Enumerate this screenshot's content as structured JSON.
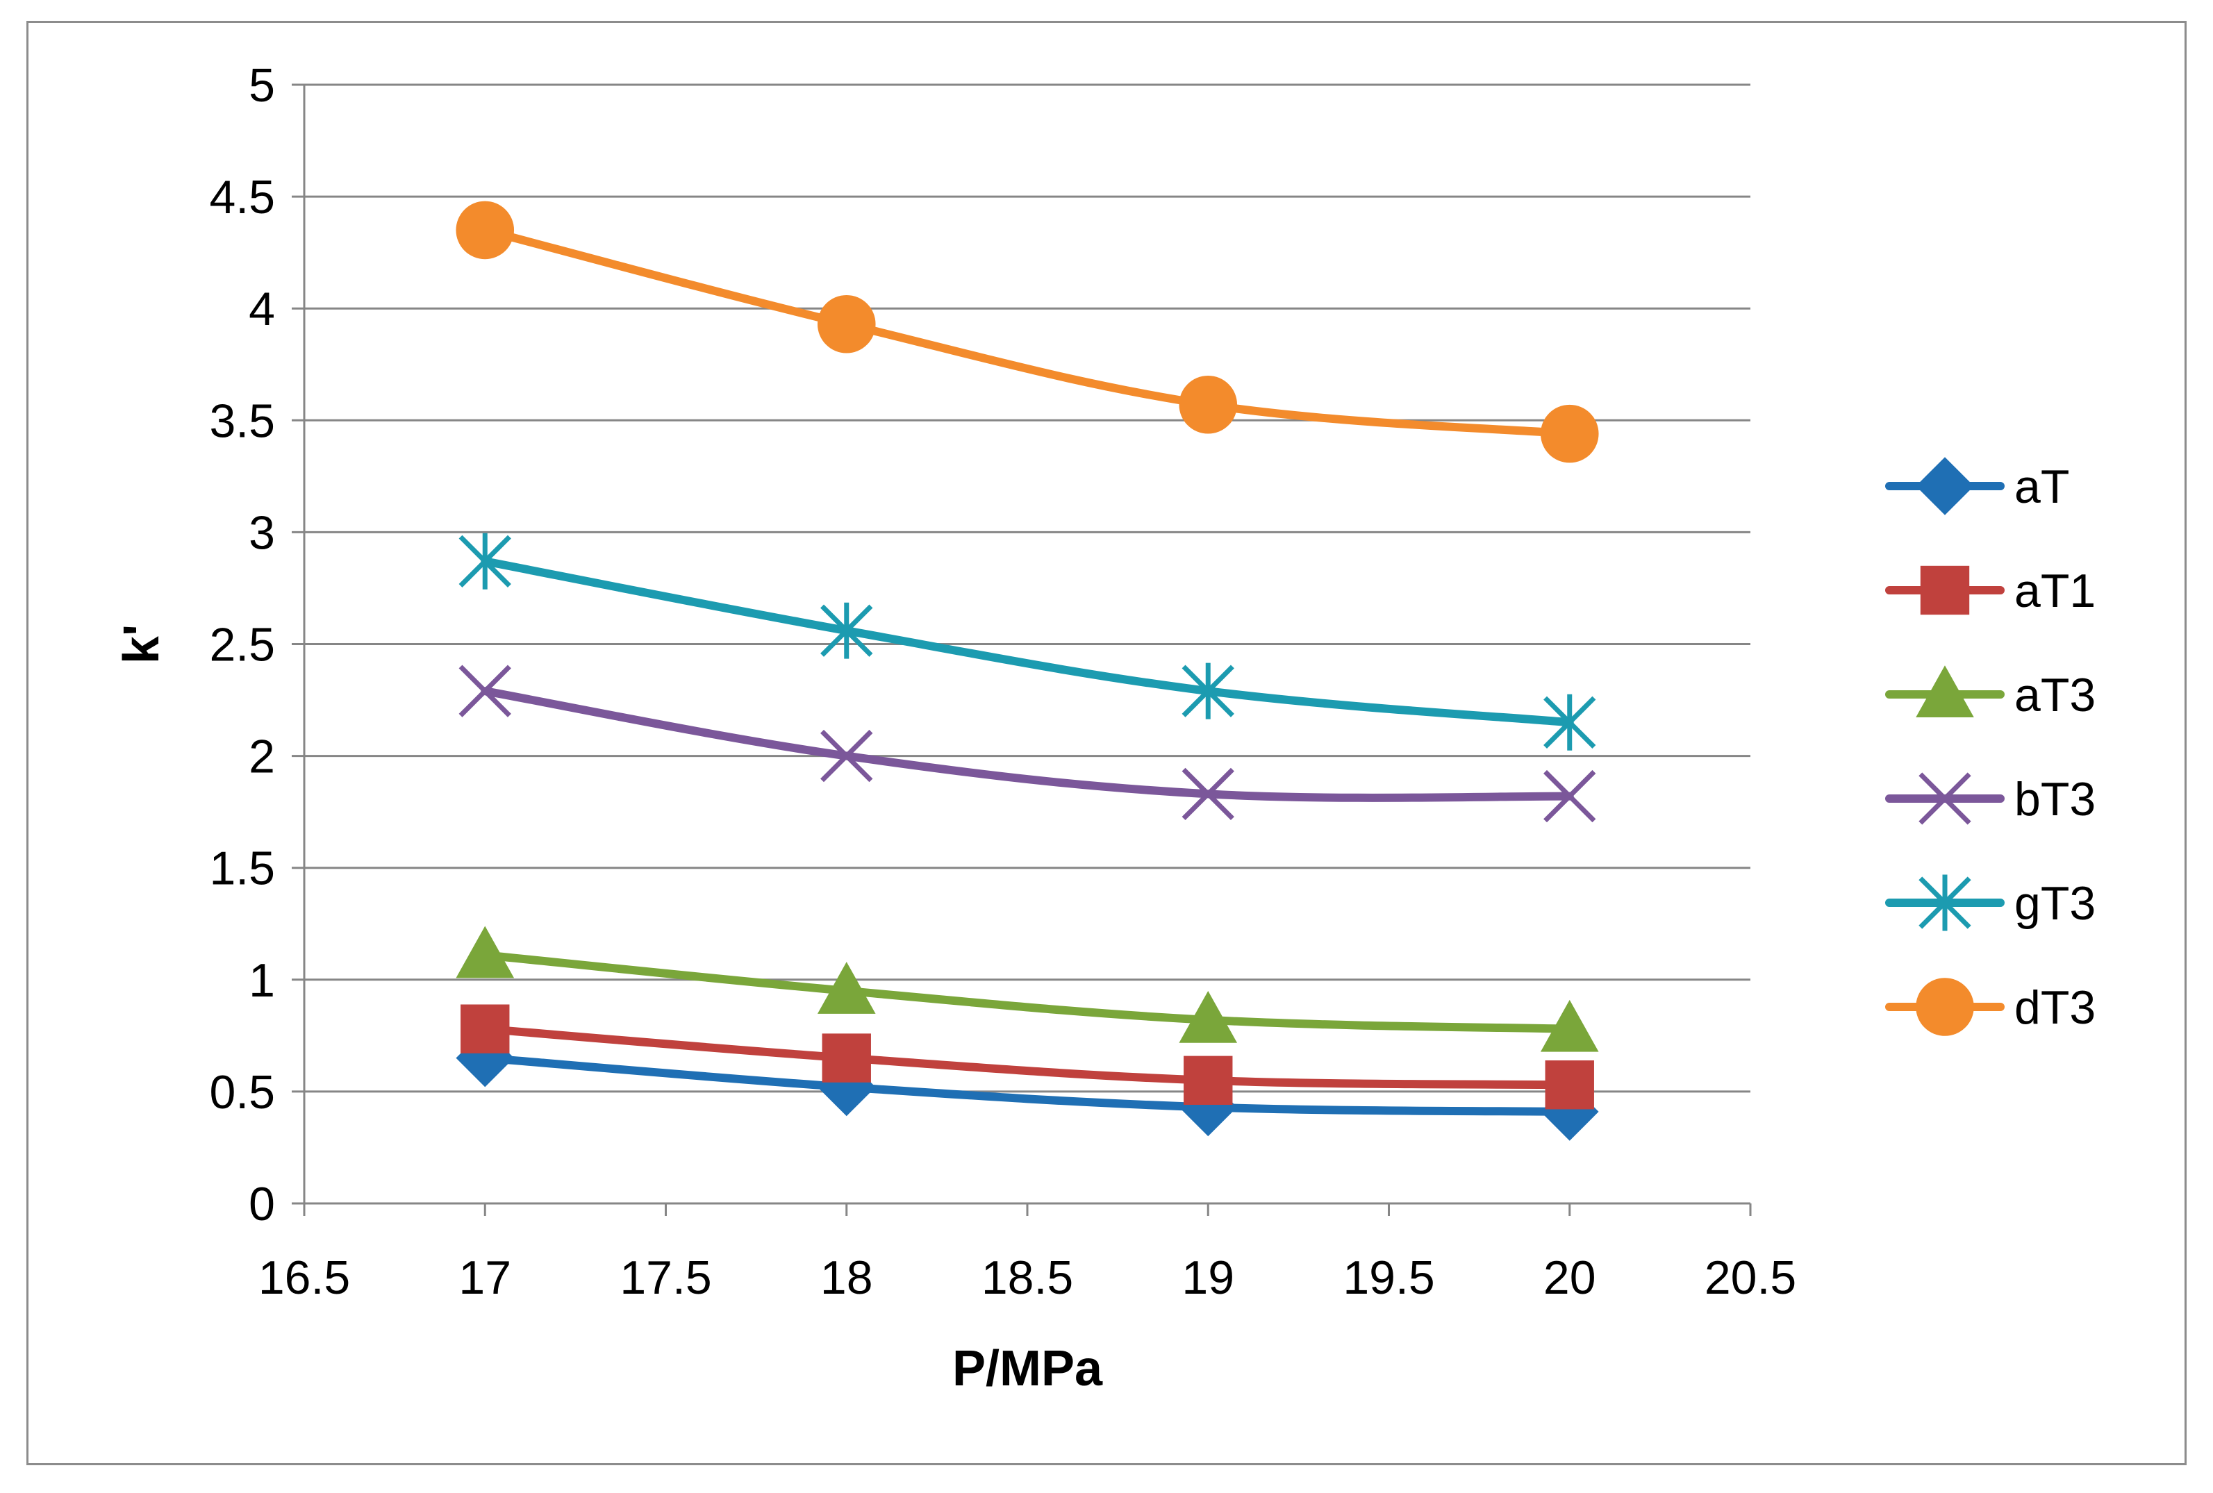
{
  "chart_data": {
    "type": "line",
    "title": "",
    "xlabel": "P/MPa",
    "ylabel": "k'",
    "xlim": [
      16.5,
      20.5
    ],
    "ylim": [
      0,
      5
    ],
    "x_ticks": [
      "16.5",
      "17",
      "17.5",
      "18",
      "18.5",
      "19",
      "19.5",
      "20",
      "20.5"
    ],
    "y_ticks": [
      "0",
      "0.5",
      "1",
      "1.5",
      "2",
      "2.5",
      "3",
      "3.5",
      "4",
      "4.5",
      "5"
    ],
    "grid": "horizontal major gridlines",
    "legend_position": "right",
    "x": [
      17,
      18,
      19,
      20
    ],
    "series": [
      {
        "name": "aT",
        "values": [
          0.65,
          0.52,
          0.43,
          0.41
        ],
        "color": "#1f6fb4",
        "marker": "diamond"
      },
      {
        "name": "aT1",
        "values": [
          0.78,
          0.65,
          0.55,
          0.53
        ],
        "color": "#c0413d",
        "marker": "square"
      },
      {
        "name": "aT3",
        "values": [
          1.11,
          0.95,
          0.82,
          0.78
        ],
        "color": "#7aa63a",
        "marker": "triangle"
      },
      {
        "name": "bT3",
        "values": [
          2.29,
          2.0,
          1.83,
          1.82
        ],
        "color": "#7b579a",
        "marker": "x"
      },
      {
        "name": "gT3",
        "values": [
          2.87,
          2.56,
          2.29,
          2.15
        ],
        "color": "#1c9bb0",
        "marker": "star"
      },
      {
        "name": "dT3",
        "values": [
          4.35,
          3.93,
          3.57,
          3.44
        ],
        "color": "#f38b2c",
        "marker": "circle"
      }
    ]
  }
}
